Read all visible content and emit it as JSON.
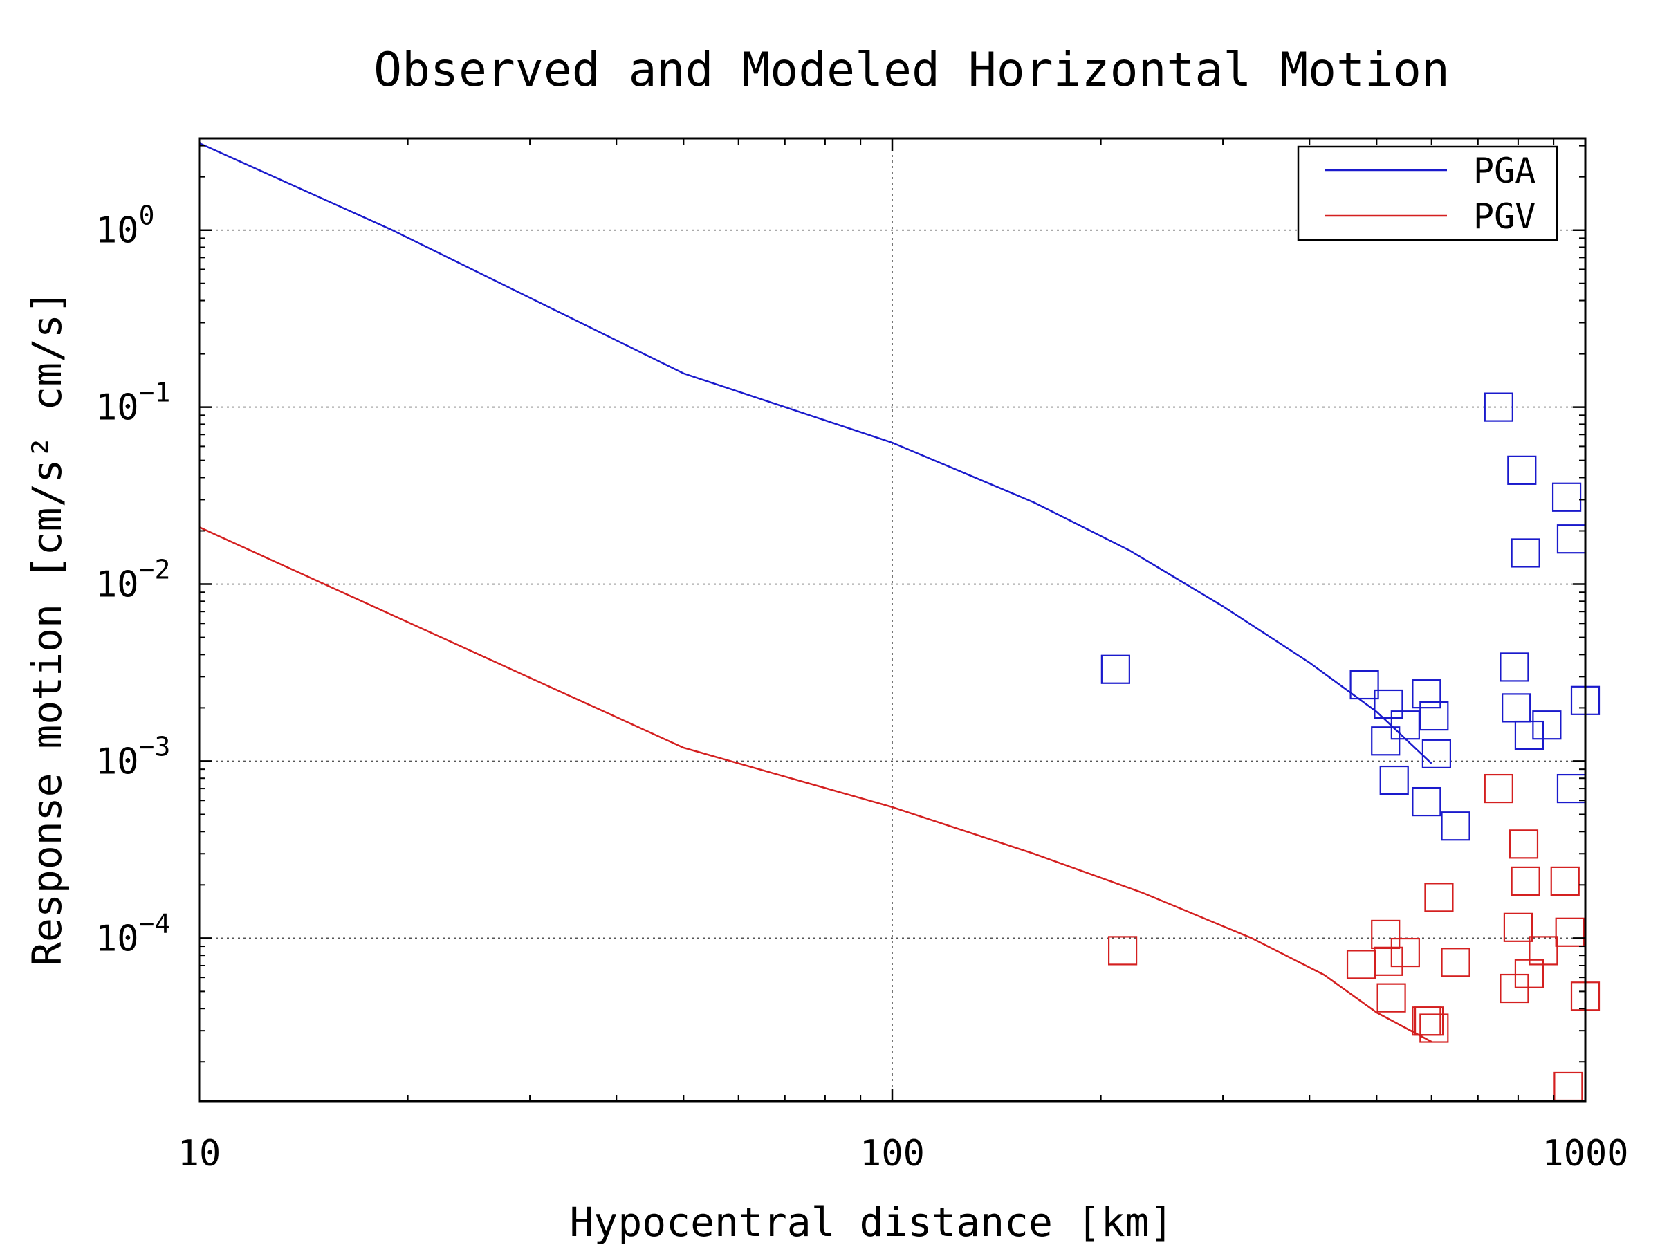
{
  "chart_data": {
    "type": "scatter",
    "title": "Observed and Modeled Horizontal Motion",
    "xlabel": "Hypocentral distance [km]",
    "ylabel": "Response motion [cm/s²  cm/s]",
    "xscale": "log",
    "yscale": "log",
    "xlim": [
      10,
      1000
    ],
    "ylim": [
      1.2e-05,
      3.3
    ],
    "grid": true,
    "legend_position": "top-right",
    "x_ticks": [
      {
        "value": 10,
        "label": "10"
      },
      {
        "value": 100,
        "label": "100"
      },
      {
        "value": 1000,
        "label": "1000"
      }
    ],
    "y_ticks": [
      {
        "value": 1,
        "base": "10",
        "exp": "0"
      },
      {
        "value": 0.1,
        "base": "10",
        "exp": "−1"
      },
      {
        "value": 0.01,
        "base": "10",
        "exp": "−2"
      },
      {
        "value": 0.001,
        "base": "10",
        "exp": "−3"
      },
      {
        "value": 0.0001,
        "base": "10",
        "exp": "−4"
      }
    ],
    "series": [
      {
        "name": "PGA",
        "color": "#1a1acc",
        "model": [
          [
            10,
            3.1
          ],
          [
            19,
            1.0
          ],
          [
            50,
            0.155
          ],
          [
            100,
            0.063
          ],
          [
            160,
            0.029
          ],
          [
            220,
            0.0155
          ],
          [
            300,
            0.0075
          ],
          [
            400,
            0.0036
          ],
          [
            500,
            0.0019
          ],
          [
            600,
            0.00097
          ]
        ],
        "observed": [
          [
            210,
            0.0033
          ],
          [
            480,
            0.0027
          ],
          [
            520,
            0.0021
          ],
          [
            515,
            0.0013
          ],
          [
            530,
            0.00078
          ],
          [
            550,
            0.0016
          ],
          [
            590,
            0.0024
          ],
          [
            590,
            0.00059
          ],
          [
            605,
            0.0018
          ],
          [
            610,
            0.0011
          ],
          [
            650,
            0.00043
          ],
          [
            750,
            0.1
          ],
          [
            790,
            0.0034
          ],
          [
            795,
            0.002
          ],
          [
            810,
            0.044
          ],
          [
            820,
            0.015
          ],
          [
            830,
            0.0014
          ],
          [
            880,
            0.0016
          ],
          [
            940,
            0.031
          ],
          [
            955,
            0.018
          ],
          [
            955,
            0.0007
          ],
          [
            1000,
            0.0022
          ]
        ]
      },
      {
        "name": "PGV",
        "color": "#d42020",
        "model": [
          [
            10,
            0.021
          ],
          [
            50,
            0.00119
          ],
          [
            100,
            0.00055
          ],
          [
            160,
            0.0003
          ],
          [
            230,
            0.00018
          ],
          [
            330,
            0.0001
          ],
          [
            420,
            6.2e-05
          ],
          [
            500,
            3.8e-05
          ],
          [
            600,
            2.6e-05
          ]
        ],
        "observed": [
          [
            215,
            8.5e-05
          ],
          [
            475,
            7.1e-05
          ],
          [
            515,
            0.000105
          ],
          [
            520,
            7.4e-05
          ],
          [
            525,
            4.6e-05
          ],
          [
            550,
            8.3e-05
          ],
          [
            590,
            3.4e-05
          ],
          [
            595,
            3.4e-05
          ],
          [
            605,
            3.1e-05
          ],
          [
            615,
            0.00017
          ],
          [
            650,
            7.3e-05
          ],
          [
            750,
            0.0007
          ],
          [
            790,
            5.2e-05
          ],
          [
            800,
            0.000115
          ],
          [
            815,
            0.00034
          ],
          [
            820,
            0.00021
          ],
          [
            830,
            6.3e-05
          ],
          [
            870,
            8.5e-05
          ],
          [
            935,
            0.00021
          ],
          [
            950,
            0.000108
          ],
          [
            945,
            1.45e-05
          ],
          [
            1000,
            4.7e-05
          ]
        ]
      }
    ]
  }
}
